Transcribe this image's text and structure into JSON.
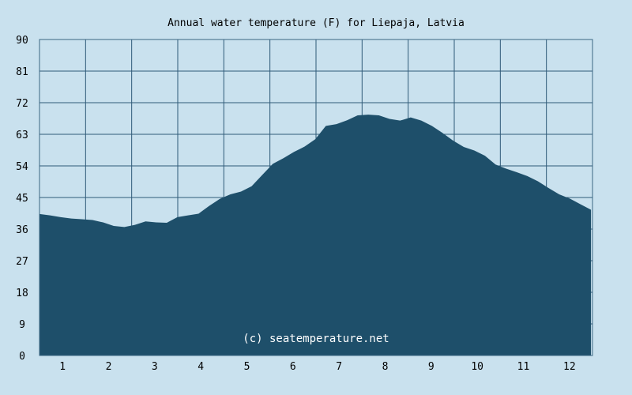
{
  "chart_data": {
    "type": "area",
    "title": "Annual water temperature (F) for Liepaja, Latvia",
    "watermark": "(c) seatemperature.net",
    "xlabel": "",
    "ylabel": "",
    "x_ticks": [
      "1",
      "2",
      "3",
      "4",
      "5",
      "6",
      "7",
      "8",
      "9",
      "10",
      "11",
      "12"
    ],
    "y_ticks": [
      "0",
      "9",
      "18",
      "27",
      "36",
      "45",
      "54",
      "63",
      "72",
      "81",
      "90"
    ],
    "xlim": [
      1,
      366
    ],
    "ylim": [
      0,
      90
    ],
    "grid": true,
    "colors": {
      "background": "#c9e1ee",
      "fill": "#1e4f6a",
      "grid": "#2f5a78",
      "plot_bg": "#c9e1ee"
    },
    "series": [
      {
        "x": [
          1,
          8,
          15,
          22,
          29,
          36,
          43,
          50,
          57,
          64,
          71,
          78,
          85,
          92,
          99,
          106,
          113,
          120,
          127,
          134,
          141,
          148,
          155,
          162,
          169,
          176,
          183,
          190,
          197,
          204,
          211,
          218,
          225,
          232,
          239,
          246,
          253,
          260,
          267,
          274,
          281,
          288,
          295,
          302,
          309,
          316,
          323,
          330,
          337,
          344,
          351,
          358,
          365
        ],
        "values": [
          40.3,
          39.9,
          39.4,
          39.0,
          38.8,
          38.6,
          37.9,
          36.9,
          36.6,
          37.2,
          38.2,
          37.9,
          37.8,
          39.4,
          39.9,
          40.4,
          42.6,
          44.6,
          45.9,
          46.7,
          48.2,
          51.4,
          54.6,
          56.2,
          58.0,
          59.5,
          61.6,
          65.4,
          65.9,
          67.0,
          68.4,
          68.6,
          68.4,
          67.4,
          66.9,
          67.8,
          66.9,
          65.4,
          63.4,
          61.2,
          59.4,
          58.4,
          56.9,
          54.4,
          53.2,
          52.2,
          51.1,
          49.6,
          47.7,
          45.9,
          44.7,
          43.1,
          41.5
        ]
      }
    ]
  }
}
